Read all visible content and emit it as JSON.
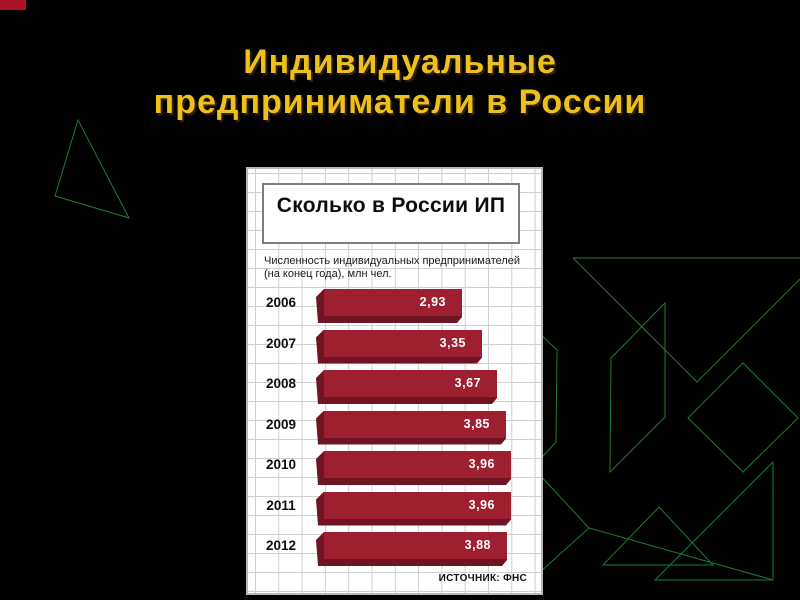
{
  "slide": {
    "title_line1": "Индивидуальные",
    "title_line2": "предприниматели в России"
  },
  "colors": {
    "title_gold": "#eec01c",
    "bar_face": "#9e2030",
    "bar_shade": "#6e1422",
    "line_green": "#1e7b33",
    "corner_red": "#ad1326",
    "grid": "#cfcfcf"
  },
  "chart": {
    "title": "Сколько в России ИП",
    "subtitle_line1": "Численность индивидуальных предпринимателей",
    "subtitle_line2": "(на конец года), млн чел.",
    "source": "ИСТОЧНИК: ФНС",
    "rows": [
      {
        "year": "2006",
        "label": "2,93"
      },
      {
        "year": "2007",
        "label": "3,35"
      },
      {
        "year": "2008",
        "label": "3,67"
      },
      {
        "year": "2009",
        "label": "3,85"
      },
      {
        "year": "2010",
        "label": "3,96"
      },
      {
        "year": "2011",
        "label": "3,96"
      },
      {
        "year": "2012",
        "label": "3,88"
      }
    ]
  },
  "chart_data": {
    "type": "bar",
    "orientation": "horizontal",
    "title": "Сколько в России ИП",
    "subtitle": "Численность индивидуальных предпринимателей (на конец года), млн чел.",
    "categories": [
      "2006",
      "2007",
      "2008",
      "2009",
      "2010",
      "2011",
      "2012"
    ],
    "values": [
      2.93,
      3.35,
      3.67,
      3.85,
      3.96,
      3.96,
      3.88
    ],
    "value_labels": [
      "2,93",
      "3,35",
      "3,67",
      "3,85",
      "3,96",
      "3,96",
      "3,88"
    ],
    "unit": "млн чел.",
    "source": "ИСТОЧНИК: ФНС",
    "xlim": [
      0,
      4.2
    ],
    "grid": true,
    "legend": false
  }
}
